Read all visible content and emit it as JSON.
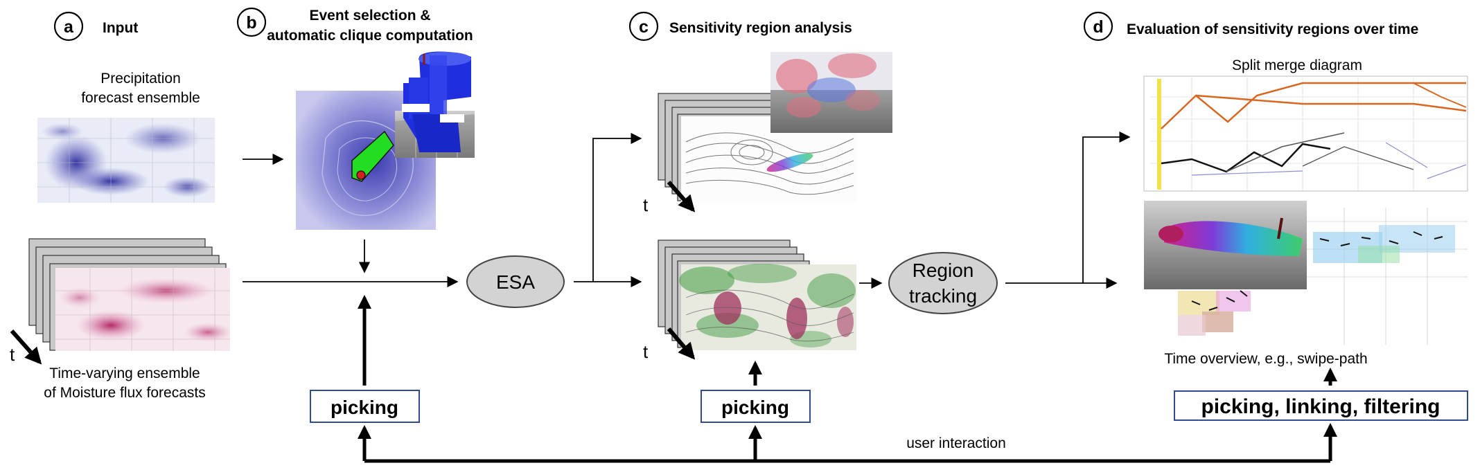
{
  "panels": {
    "a": {
      "letter": "a",
      "title": "Input"
    },
    "b": {
      "letter": "b",
      "title_line1": "Event selection &",
      "title_line2": "automatic clique computation"
    },
    "c": {
      "letter": "c",
      "title": "Sensitivity region analysis"
    },
    "d": {
      "letter": "d",
      "title": "Evaluation of sensitivity regions over time"
    }
  },
  "captions": {
    "precip_line1": "Precipitation",
    "precip_line2": "forecast ensemble",
    "moisture_line1": "Time-varying ensemble",
    "moisture_line2": "of Moisture flux forecasts",
    "split_merge": "Split merge diagram",
    "time_overview": "Time overview, e.g., swipe-path",
    "user_interaction": "user interaction",
    "time_symbol": "t"
  },
  "nodes": {
    "esa": "ESA",
    "region_line1": "Region",
    "region_line2": "tracking"
  },
  "buttons": {
    "picking_b": "picking",
    "picking_c": "picking",
    "picking_d": "picking, linking, filtering"
  },
  "colors": {
    "node_fill": "#d3d3d3",
    "button_border": "#2f4a8f",
    "precip_blue": "#3a38b0",
    "moisture_pink": "#c4326e",
    "sensitivity_green": "#3f9a3f",
    "split_orange": "#d9661f",
    "event_green": "#22dd22",
    "volume_blue": "#1f2fe0"
  }
}
